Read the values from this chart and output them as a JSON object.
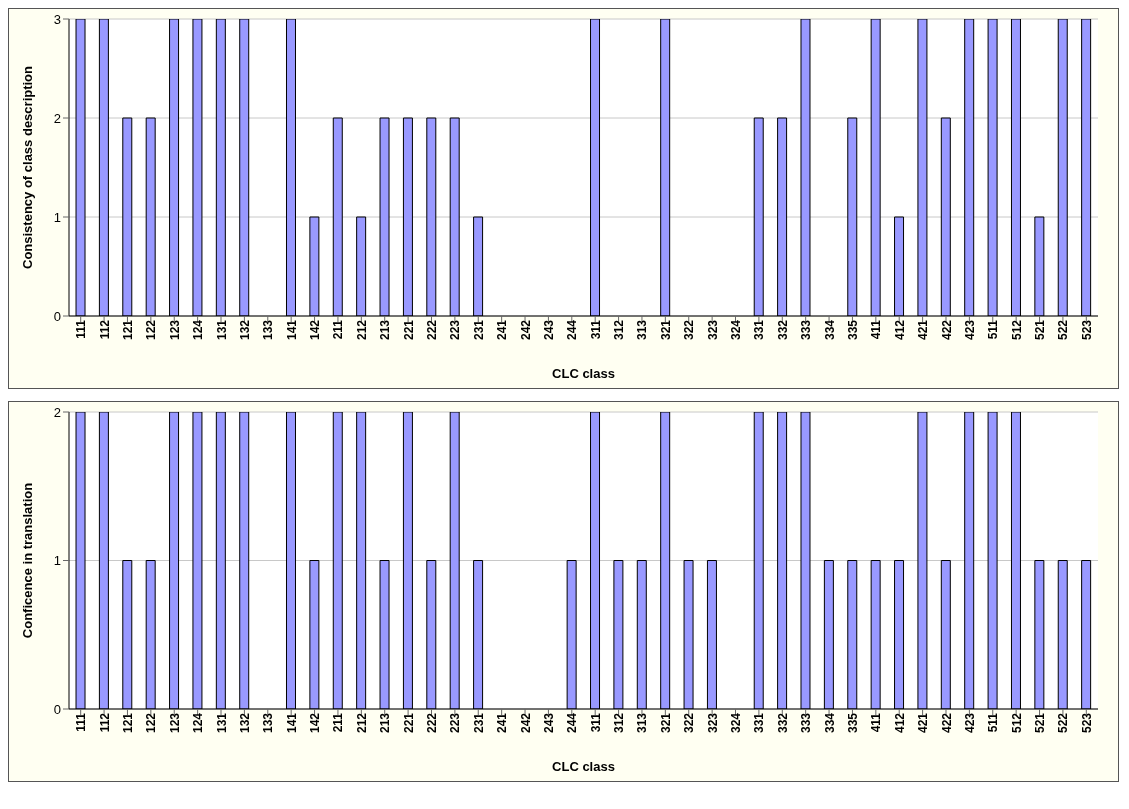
{
  "chart_data": [
    {
      "type": "bar",
      "xlabel": "CLC class",
      "ylabel": "Consistency of class description",
      "categories": [
        "111",
        "112",
        "121",
        "122",
        "123",
        "124",
        "131",
        "132",
        "133",
        "141",
        "142",
        "211",
        "212",
        "213",
        "221",
        "222",
        "223",
        "231",
        "241",
        "242",
        "243",
        "244",
        "311",
        "312",
        "313",
        "321",
        "322",
        "323",
        "324",
        "331",
        "332",
        "333",
        "334",
        "335",
        "411",
        "412",
        "421",
        "422",
        "423",
        "511",
        "512",
        "521",
        "522",
        "523"
      ],
      "values": [
        3,
        3,
        2,
        2,
        3,
        3,
        3,
        3,
        0,
        3,
        1,
        2,
        1,
        2,
        2,
        2,
        2,
        1,
        0,
        0,
        0,
        0,
        3,
        0,
        0,
        3,
        0,
        0,
        0,
        2,
        2,
        3,
        0,
        2,
        3,
        1,
        3,
        2,
        3,
        3,
        3,
        1,
        3,
        3
      ],
      "color": "#9999ff",
      "ylim": [
        0,
        3
      ],
      "yticks": [
        0,
        1,
        2,
        3
      ],
      "grid": "y",
      "legend": false
    },
    {
      "type": "bar",
      "xlabel": "CLC class",
      "ylabel": "Conficence in translation",
      "categories": [
        "111",
        "112",
        "121",
        "122",
        "123",
        "124",
        "131",
        "132",
        "133",
        "141",
        "142",
        "211",
        "212",
        "213",
        "221",
        "222",
        "223",
        "231",
        "241",
        "242",
        "243",
        "244",
        "311",
        "312",
        "313",
        "321",
        "322",
        "323",
        "324",
        "331",
        "332",
        "333",
        "334",
        "335",
        "411",
        "412",
        "421",
        "422",
        "423",
        "511",
        "512",
        "521",
        "522",
        "523"
      ],
      "values": [
        2,
        2,
        1,
        1,
        2,
        2,
        2,
        2,
        0,
        2,
        1,
        2,
        2,
        1,
        2,
        1,
        2,
        1,
        0,
        0,
        0,
        1,
        2,
        1,
        1,
        2,
        1,
        1,
        0,
        2,
        2,
        2,
        1,
        1,
        1,
        1,
        2,
        1,
        2,
        2,
        2,
        1,
        1,
        1
      ],
      "color": "#9999ff",
      "ylim": [
        0,
        2
      ],
      "yticks": [
        0,
        1,
        2
      ],
      "grid": "y",
      "legend": false
    }
  ]
}
